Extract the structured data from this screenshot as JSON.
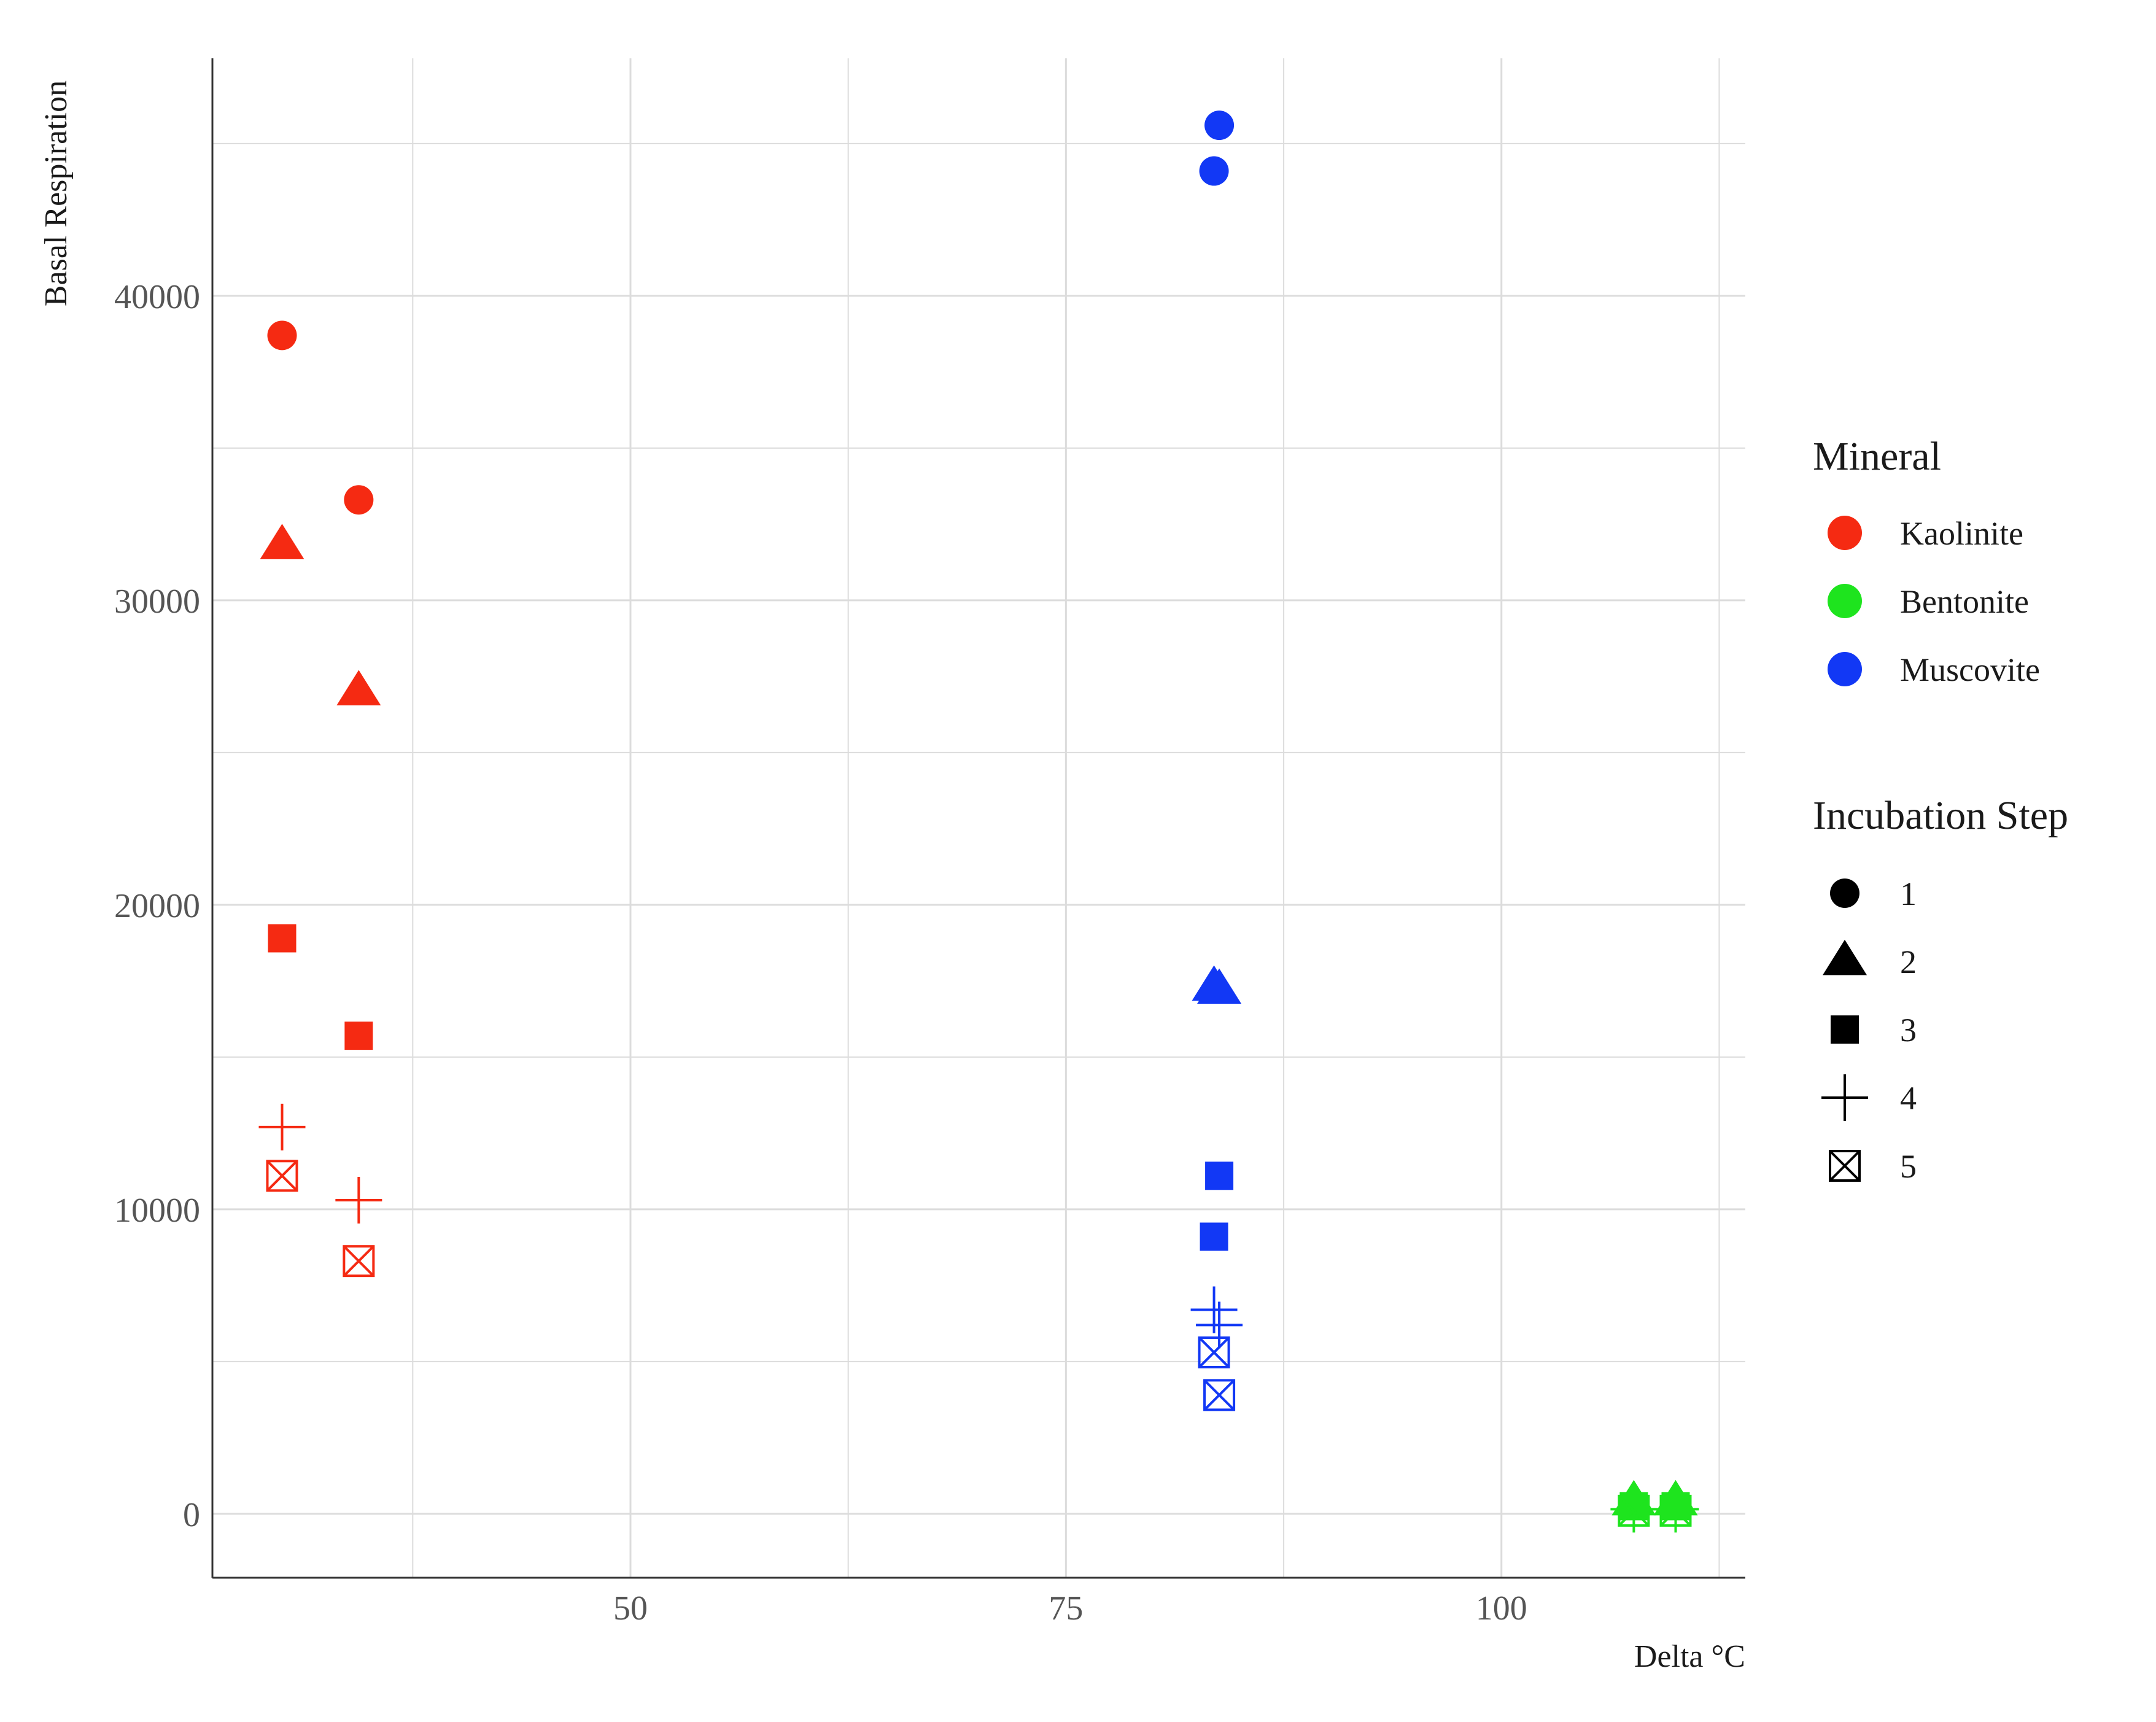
{
  "chart_data": {
    "type": "scatter",
    "title": "",
    "xlabel": "Delta °C",
    "ylabel": "Basal Respiration",
    "xlim": [
      26,
      114
    ],
    "ylim": [
      -2100,
      47800
    ],
    "x_ticks": [
      50,
      75,
      100
    ],
    "x_tick_labels": [
      "50",
      "75",
      "100"
    ],
    "y_ticks": [
      0,
      10000,
      20000,
      30000,
      40000
    ],
    "y_tick_labels": [
      "0",
      "10000",
      "20000",
      "30000",
      "40000"
    ],
    "grid": true,
    "legend_position": "right",
    "color_legend": {
      "title": "Mineral",
      "items": [
        {
          "name": "Kaolinite",
          "color": "#f52a12"
        },
        {
          "name": "Bentonite",
          "color": "#1ee41e"
        },
        {
          "name": "Muscovite",
          "color": "#1238f5"
        }
      ]
    },
    "shape_legend": {
      "title": "Incubation Step",
      "items": [
        {
          "name": "1",
          "shape": "circle"
        },
        {
          "name": "2",
          "shape": "triangle"
        },
        {
          "name": "3",
          "shape": "square"
        },
        {
          "name": "4",
          "shape": "plus"
        },
        {
          "name": "5",
          "shape": "square-cross"
        }
      ]
    },
    "points": [
      {
        "mineral": "Kaolinite",
        "step": "1",
        "x": 30.0,
        "y": 38700
      },
      {
        "mineral": "Kaolinite",
        "step": "1",
        "x": 34.4,
        "y": 33300
      },
      {
        "mineral": "Kaolinite",
        "step": "2",
        "x": 30.0,
        "y": 31800
      },
      {
        "mineral": "Kaolinite",
        "step": "2",
        "x": 34.4,
        "y": 27000
      },
      {
        "mineral": "Kaolinite",
        "step": "3",
        "x": 30.0,
        "y": 18900
      },
      {
        "mineral": "Kaolinite",
        "step": "3",
        "x": 34.4,
        "y": 15700
      },
      {
        "mineral": "Kaolinite",
        "step": "4",
        "x": 30.0,
        "y": 12700
      },
      {
        "mineral": "Kaolinite",
        "step": "4",
        "x": 34.4,
        "y": 10300
      },
      {
        "mineral": "Kaolinite",
        "step": "5",
        "x": 30.0,
        "y": 11100
      },
      {
        "mineral": "Kaolinite",
        "step": "5",
        "x": 34.4,
        "y": 8300
      },
      {
        "mineral": "Muscovite",
        "step": "1",
        "x": 83.8,
        "y": 45600
      },
      {
        "mineral": "Muscovite",
        "step": "1",
        "x": 83.5,
        "y": 44100
      },
      {
        "mineral": "Muscovite",
        "step": "2",
        "x": 83.5,
        "y": 17300
      },
      {
        "mineral": "Muscovite",
        "step": "2",
        "x": 83.8,
        "y": 17200
      },
      {
        "mineral": "Muscovite",
        "step": "3",
        "x": 83.8,
        "y": 11100
      },
      {
        "mineral": "Muscovite",
        "step": "3",
        "x": 83.5,
        "y": 9100
      },
      {
        "mineral": "Muscovite",
        "step": "4",
        "x": 83.5,
        "y": 6700
      },
      {
        "mineral": "Muscovite",
        "step": "4",
        "x": 83.8,
        "y": 6200
      },
      {
        "mineral": "Muscovite",
        "step": "5",
        "x": 83.5,
        "y": 5300
      },
      {
        "mineral": "Muscovite",
        "step": "5",
        "x": 83.8,
        "y": 3900
      },
      {
        "mineral": "Bentonite",
        "step": "1",
        "x": 107.6,
        "y": 300
      },
      {
        "mineral": "Bentonite",
        "step": "1",
        "x": 110.0,
        "y": 300
      },
      {
        "mineral": "Bentonite",
        "step": "2",
        "x": 107.6,
        "y": 400
      },
      {
        "mineral": "Bentonite",
        "step": "2",
        "x": 110.0,
        "y": 400
      },
      {
        "mineral": "Bentonite",
        "step": "3",
        "x": 107.6,
        "y": 250
      },
      {
        "mineral": "Bentonite",
        "step": "3",
        "x": 110.0,
        "y": 250
      },
      {
        "mineral": "Bentonite",
        "step": "4",
        "x": 107.6,
        "y": 150
      },
      {
        "mineral": "Bentonite",
        "step": "4",
        "x": 110.0,
        "y": 150
      },
      {
        "mineral": "Bentonite",
        "step": "5",
        "x": 107.6,
        "y": 100
      },
      {
        "mineral": "Bentonite",
        "step": "5",
        "x": 110.0,
        "y": 100
      }
    ]
  }
}
